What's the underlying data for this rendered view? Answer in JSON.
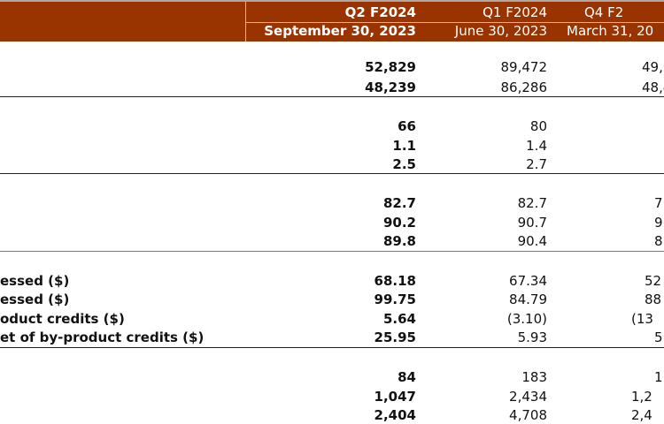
{
  "header": {
    "quarters": [
      "Q2 F2024",
      "Q1 F2024",
      "Q4 F2"
    ],
    "dates": [
      "September 30, 2023",
      "June 30, 2023",
      "March 31, 20"
    ]
  },
  "colors": {
    "header_bg": "#993300"
  },
  "rows": [
    {
      "label": "",
      "values": [
        "52,829",
        "89,472",
        "49,6"
      ]
    },
    {
      "label": "",
      "values": [
        "48,239",
        "86,286",
        "48,4"
      ]
    },
    {
      "label": "",
      "values": [
        "66",
        "80",
        ""
      ]
    },
    {
      "label": "",
      "values": [
        "1.1",
        "1.4",
        ""
      ]
    },
    {
      "label": "",
      "values": [
        "2.5",
        "2.7",
        ""
      ]
    },
    {
      "label": "",
      "values": [
        "82.7",
        "82.7",
        "7"
      ]
    },
    {
      "label": "",
      "values": [
        "90.2",
        "90.7",
        "9"
      ]
    },
    {
      "label": "",
      "values": [
        "89.8",
        "90.4",
        "8"
      ]
    },
    {
      "label": "essed ($)",
      "values": [
        "68.18",
        "67.34",
        "52"
      ]
    },
    {
      "label": "essed ($)",
      "values": [
        "99.75",
        "84.79",
        "88"
      ]
    },
    {
      "label": "oduct credits ($)",
      "values": [
        "5.64",
        "(3.10)",
        "(13"
      ]
    },
    {
      "label": "et of by-product credits ($)",
      "values": [
        "25.95",
        "5.93",
        "5"
      ]
    },
    {
      "label": "",
      "values": [
        "84",
        "183",
        "1"
      ]
    },
    {
      "label": "",
      "values": [
        "1,047",
        "2,434",
        "1,2"
      ]
    },
    {
      "label": "",
      "values": [
        "2,404",
        "4,708",
        "2,4"
      ]
    }
  ]
}
